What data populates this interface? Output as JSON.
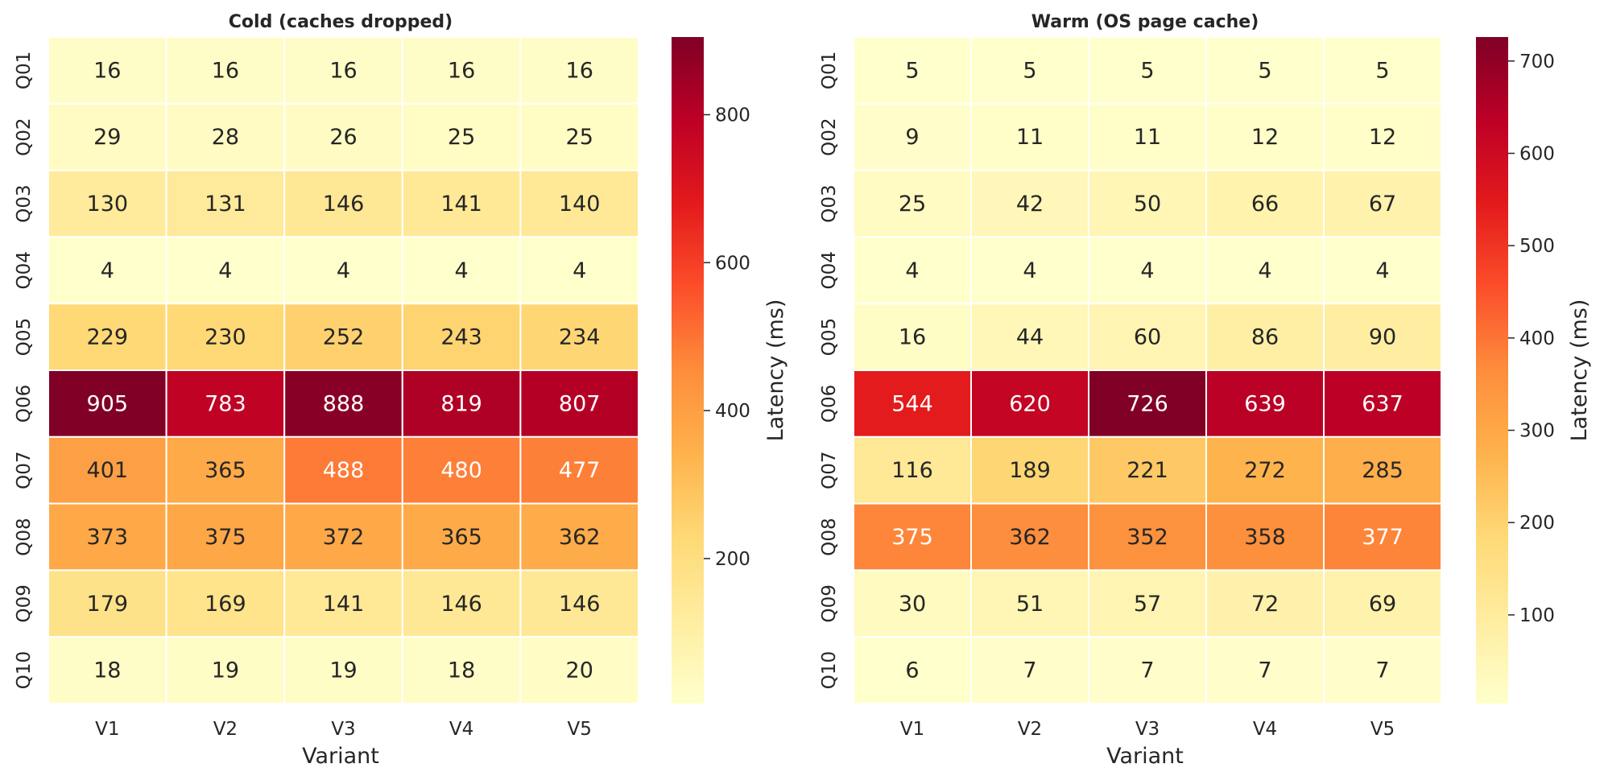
{
  "chart_data": [
    {
      "type": "heatmap",
      "title": "Cold (caches dropped)",
      "xlabel": "Variant",
      "ylabel": "",
      "colorbar_label": "Latency (ms)",
      "colormap": "YlOrRd",
      "x_categories": [
        "V1",
        "V2",
        "V3",
        "V4",
        "V5"
      ],
      "y_categories": [
        "Q01",
        "Q02",
        "Q03",
        "Q04",
        "Q05",
        "Q06",
        "Q07",
        "Q08",
        "Q09",
        "Q10"
      ],
      "values": [
        [
          16,
          16,
          16,
          16,
          16
        ],
        [
          29,
          28,
          26,
          25,
          25
        ],
        [
          130,
          131,
          146,
          141,
          140
        ],
        [
          4,
          4,
          4,
          4,
          4
        ],
        [
          229,
          230,
          252,
          243,
          234
        ],
        [
          905,
          783,
          888,
          819,
          807
        ],
        [
          401,
          365,
          488,
          480,
          477
        ],
        [
          373,
          375,
          372,
          365,
          362
        ],
        [
          179,
          169,
          141,
          146,
          146
        ],
        [
          18,
          19,
          19,
          18,
          20
        ]
      ],
      "vmin": 4,
      "vmax": 905,
      "colorbar_ticks": [
        200,
        400,
        600,
        800
      ]
    },
    {
      "type": "heatmap",
      "title": "Warm (OS page cache)",
      "xlabel": "Variant",
      "ylabel": "",
      "colorbar_label": "Latency (ms)",
      "colormap": "YlOrRd",
      "x_categories": [
        "V1",
        "V2",
        "V3",
        "V4",
        "V5"
      ],
      "y_categories": [
        "Q01",
        "Q02",
        "Q03",
        "Q04",
        "Q05",
        "Q06",
        "Q07",
        "Q08",
        "Q09",
        "Q10"
      ],
      "values": [
        [
          5,
          5,
          5,
          5,
          5
        ],
        [
          9,
          11,
          11,
          12,
          12
        ],
        [
          25,
          42,
          50,
          66,
          67
        ],
        [
          4,
          4,
          4,
          4,
          4
        ],
        [
          16,
          44,
          60,
          86,
          90
        ],
        [
          544,
          620,
          726,
          639,
          637
        ],
        [
          116,
          189,
          221,
          272,
          285
        ],
        [
          375,
          362,
          352,
          358,
          377
        ],
        [
          30,
          51,
          57,
          72,
          69
        ],
        [
          6,
          7,
          7,
          7,
          7
        ]
      ],
      "vmin": 4,
      "vmax": 726,
      "colorbar_ticks": [
        100,
        200,
        300,
        400,
        500,
        600,
        700
      ]
    }
  ]
}
